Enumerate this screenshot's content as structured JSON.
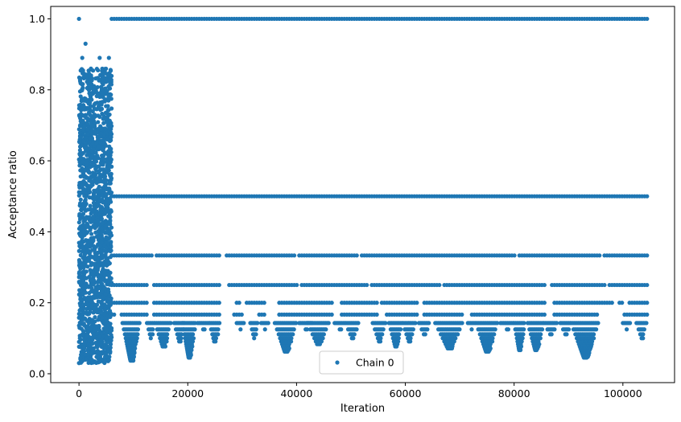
{
  "chart_data": {
    "type": "scatter",
    "xlabel": "Iteration",
    "ylabel": "Acceptance ratio",
    "xlim": [
      -5200,
      109500
    ],
    "ylim": [
      -0.025,
      1.035
    ],
    "x_ticks": [
      0,
      20000,
      40000,
      60000,
      80000,
      100000
    ],
    "x_tick_labels": [
      "0",
      "20000",
      "40000",
      "60000",
      "80000",
      "100000"
    ],
    "y_ticks": [
      0.0,
      0.2,
      0.4,
      0.6,
      0.8,
      1.0
    ],
    "y_tick_labels": [
      "0.0",
      "0.2",
      "0.4",
      "0.6",
      "0.8",
      "1.0"
    ],
    "grid": false,
    "legend_position": "lower-center",
    "series": [
      {
        "name": "Chain 0",
        "color": "#1f77b4",
        "marker": "dot",
        "x_range": [
          0,
          104500
        ],
        "burn_in": {
          "x_range": [
            0,
            6000
          ],
          "y_range": [
            0.03,
            1.0
          ],
          "dense_core": [
            0.12,
            0.7
          ],
          "outliers": [
            {
              "x": 0,
              "y": 1.0
            },
            {
              "x": 600,
              "y": 0.89
            },
            {
              "x": 1200,
              "y": 0.93
            },
            {
              "x": 3800,
              "y": 0.89
            },
            {
              "x": 5500,
              "y": 0.89
            },
            {
              "x": 0,
              "y": 0.03
            }
          ]
        },
        "levels": [
          {
            "y": 1.0,
            "x_range": [
              6000,
              104500
            ],
            "gaps": []
          },
          {
            "y": 0.5,
            "x_range": [
              6000,
              104500
            ],
            "gaps": []
          },
          {
            "y": 0.3333,
            "x_range": [
              6000,
              104500
            ],
            "gaps": [
              [
                13600,
                14000
              ],
              [
                26100,
                26700
              ],
              [
                30000,
                30200
              ],
              [
                40000,
                40400
              ],
              [
                51200,
                51700
              ],
              [
                80500,
                80900
              ],
              [
                96000,
                96400
              ]
            ]
          },
          {
            "y": 0.25,
            "x_range": [
              6000,
              104500
            ],
            "gaps": [
              [
                12900,
                13600
              ],
              [
                26100,
                27200
              ],
              [
                40200,
                40600
              ],
              [
                53000,
                53500
              ],
              [
                66500,
                67000
              ],
              [
                85700,
                86700
              ],
              [
                97000,
                97300
              ]
            ]
          },
          {
            "y": 0.2,
            "x_range": [
              6000,
              104500
            ],
            "gaps": [
              [
                12900,
                13800
              ],
              [
                25800,
                28700
              ],
              [
                29900,
                30400
              ],
              [
                34400,
                36400
              ],
              [
                46700,
                48100
              ],
              [
                55000,
                55300
              ],
              [
                62200,
                63200
              ],
              [
                85800,
                87300
              ],
              [
                98200,
                99000
              ],
              [
                100300,
                100900
              ]
            ]
          },
          {
            "y": 0.1667,
            "x_range": [
              6000,
              104500
            ],
            "gaps": [
              [
                6600,
                7800
              ],
              [
                12900,
                13800
              ],
              [
                25800,
                28500
              ],
              [
                30000,
                33000
              ],
              [
                34500,
                36400
              ],
              [
                46700,
                48100
              ],
              [
                55000,
                56500
              ],
              [
                62300,
                63300
              ],
              [
                70500,
                72200
              ],
              [
                85800,
                87300
              ],
              [
                95500,
                100000
              ]
            ]
          }
        ],
        "low_clusters": [
          {
            "x_range": [
              8000,
              11200
            ],
            "y_min": 0.035
          },
          {
            "x_range": [
              12500,
              14000
            ],
            "y_min": 0.1
          },
          {
            "x_range": [
              14000,
              17000
            ],
            "y_min": 0.075
          },
          {
            "x_range": [
              17500,
              19500
            ],
            "y_min": 0.09
          },
          {
            "x_range": [
              19000,
              21500
            ],
            "y_min": 0.045
          },
          {
            "x_range": [
              21800,
              24000
            ],
            "y_min": 0.125
          },
          {
            "x_range": [
              24000,
              26000
            ],
            "y_min": 0.085
          },
          {
            "x_range": [
              29000,
              30500
            ],
            "y_min": 0.125
          },
          {
            "x_range": [
              31500,
              33000
            ],
            "y_min": 0.1
          },
          {
            "x_range": [
              33500,
              35000
            ],
            "y_min": 0.125
          },
          {
            "x_range": [
              36000,
              40000
            ],
            "y_min": 0.06
          },
          {
            "x_range": [
              40500,
              43000
            ],
            "y_min": 0.125
          },
          {
            "x_range": [
              42000,
              46000
            ],
            "y_min": 0.08
          },
          {
            "x_range": [
              47000,
              49000
            ],
            "y_min": 0.125
          },
          {
            "x_range": [
              49000,
              51500
            ],
            "y_min": 0.1
          },
          {
            "x_range": [
              54000,
              56500
            ],
            "y_min": 0.09
          },
          {
            "x_range": [
              57000,
              59500
            ],
            "y_min": 0.075
          },
          {
            "x_range": [
              59500,
              62000
            ],
            "y_min": 0.09
          },
          {
            "x_range": [
              62500,
              64500
            ],
            "y_min": 0.11
          },
          {
            "x_range": [
              65500,
              70500
            ],
            "y_min": 0.07
          },
          {
            "x_range": [
              71500,
              73000
            ],
            "y_min": 0.125
          },
          {
            "x_range": [
              73000,
              77000
            ],
            "y_min": 0.06
          },
          {
            "x_range": [
              77500,
              80000
            ],
            "y_min": 0.125
          },
          {
            "x_range": [
              80000,
              82000
            ],
            "y_min": 0.065
          },
          {
            "x_range": [
              82500,
              85500
            ],
            "y_min": 0.065
          },
          {
            "x_range": [
              85500,
              88000
            ],
            "y_min": 0.11
          },
          {
            "x_range": [
              88500,
              90500
            ],
            "y_min": 0.11
          },
          {
            "x_range": [
              90500,
              95500
            ],
            "y_min": 0.045
          },
          {
            "x_range": [
              100000,
              101500
            ],
            "y_min": 0.125
          },
          {
            "x_range": [
              102500,
              104500
            ],
            "y_min": 0.1
          }
        ]
      }
    ]
  }
}
